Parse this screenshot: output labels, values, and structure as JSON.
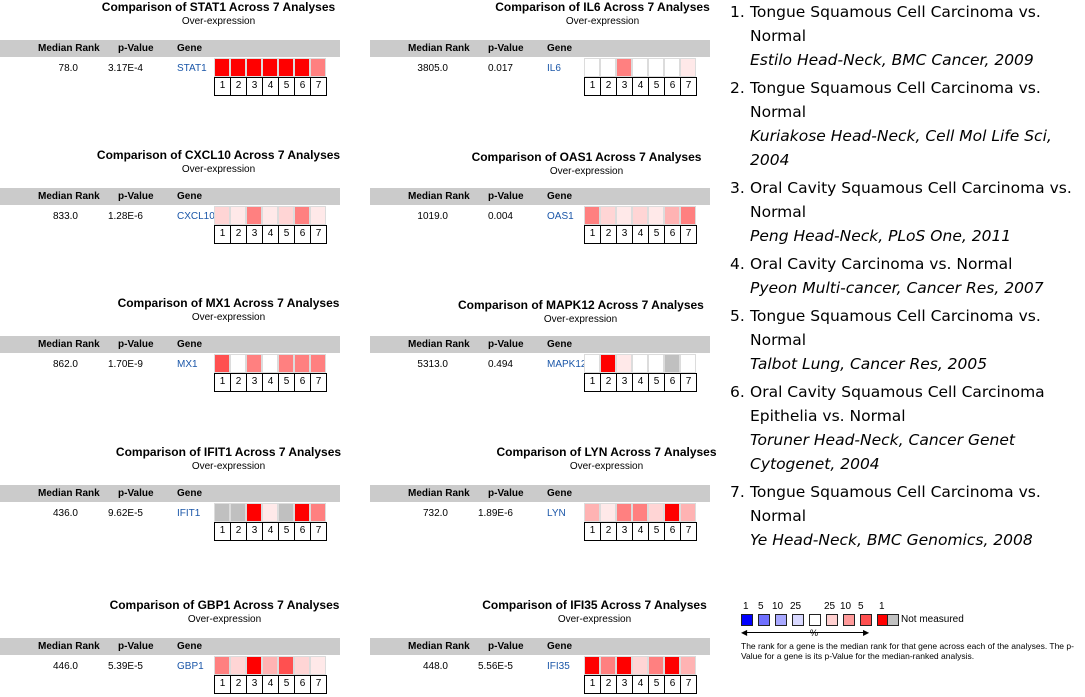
{
  "colors": {
    "0": "#ffffff",
    "1": "#ffe9e9",
    "2": "#ffd5d5",
    "3": "#ffb3b3",
    "4": "#ff8080",
    "5": "#ff5050",
    "6": "#ff0000",
    "g": "#c0c0c0"
  },
  "panels": [
    {
      "title": "Comparison of STAT1 Across 7 Analyses",
      "subtitle": "Over-expression",
      "header": {
        "rank": "Median Rank",
        "p": "p-Value",
        "gene": "Gene"
      },
      "rank": "78.0",
      "p": "3.17E-4",
      "gene": "STAT1",
      "levels": [
        "6",
        "6",
        "6",
        "6",
        "6",
        "6",
        "4"
      ]
    },
    {
      "title": "Comparison of IL6 Across 7 Analyses",
      "subtitle": "Over-expression",
      "header": {
        "rank": "Median Rank",
        "p": "p-Value",
        "gene": "Gene"
      },
      "rank": "3805.0",
      "p": "0.017",
      "gene": "IL6",
      "levels": [
        "0",
        "0",
        "4",
        "0",
        "0",
        "0",
        "1"
      ]
    },
    {
      "title": "Comparison of CXCL10 Across 7 Analyses",
      "subtitle": "Over-expression",
      "header": {
        "rank": "Median Rank",
        "p": "p-Value",
        "gene": "Gene"
      },
      "rank": "833.0",
      "p": "1.28E-6",
      "gene": "CXCL10",
      "levels": [
        "2",
        "1",
        "4",
        "1",
        "2",
        "4",
        "1"
      ]
    },
    {
      "title": "Comparison of OAS1 Across 7 Analyses",
      "subtitle": "Over-expression",
      "header": {
        "rank": "Median Rank",
        "p": "p-Value",
        "gene": "Gene"
      },
      "rank": "1019.0",
      "p": "0.004",
      "gene": "OAS1",
      "levels": [
        "4",
        "2",
        "1",
        "2",
        "1",
        "3",
        "4"
      ]
    },
    {
      "title": "Comparison of MX1 Across 7 Analyses",
      "subtitle": "Over-expression",
      "header": {
        "rank": "Median Rank",
        "p": "p-Value",
        "gene": "Gene"
      },
      "rank": "862.0",
      "p": "1.70E-9",
      "gene": "MX1",
      "levels": [
        "5",
        "0",
        "4",
        "0",
        "4",
        "4",
        "4"
      ]
    },
    {
      "title": "Comparison of MAPK12 Across 7 Analyses",
      "subtitle": "Over-expression",
      "header": {
        "rank": "Median Rank",
        "p": "p-Value",
        "gene": "Gene"
      },
      "rank": "5313.0",
      "p": "0.494",
      "gene": "MAPK12",
      "levels": [
        "0",
        "6",
        "1",
        "0",
        "0",
        "g",
        "0"
      ]
    },
    {
      "title": "Comparison of IFIT1 Across 7 Analyses",
      "subtitle": "Over-expression",
      "header": {
        "rank": "Median Rank",
        "p": "p-Value",
        "gene": "Gene"
      },
      "rank": "436.0",
      "p": "9.62E-5",
      "gene": "IFIT1",
      "levels": [
        "g",
        "g",
        "6",
        "1",
        "g",
        "6",
        "4"
      ]
    },
    {
      "title": "Comparison of LYN Across 7 Analyses",
      "subtitle": "Over-expression",
      "header": {
        "rank": "Median Rank",
        "p": "p-Value",
        "gene": "Gene"
      },
      "rank": "732.0",
      "p": "1.89E-6",
      "gene": "LYN",
      "levels": [
        "3",
        "1",
        "4",
        "4",
        "2",
        "6",
        "3"
      ]
    },
    {
      "title": "Comparison of GBP1 Across 7 Analyses",
      "subtitle": "Over-expression",
      "header": {
        "rank": "Median Rank",
        "p": "p-Value",
        "gene": "Gene"
      },
      "rank": "446.0",
      "p": "5.39E-5",
      "gene": "GBP1",
      "levels": [
        "4",
        "2",
        "6",
        "3",
        "5",
        "2",
        "1"
      ]
    },
    {
      "title": "Comparison of IFI35 Across 7 Analyses",
      "subtitle": "Over-expression",
      "header": {
        "rank": "Median Rank",
        "p": "p-Value",
        "gene": "Gene"
      },
      "rank": "448.0",
      "p": "5.56E-5",
      "gene": "IFI35",
      "levels": [
        "6",
        "4",
        "6",
        "2",
        "4",
        "6",
        "3"
      ]
    }
  ],
  "cell_numbers": [
    "1",
    "2",
    "3",
    "4",
    "5",
    "6",
    "7"
  ],
  "analyses": [
    {
      "num": "1.",
      "text": "Tongue Squamous Cell Carcinoma vs. Normal",
      "ref": "Estilo Head-Neck, BMC Cancer, 2009"
    },
    {
      "num": "2.",
      "text": "Tongue Squamous Cell Carcinoma vs. Normal",
      "ref": "Kuriakose Head-Neck, Cell Mol Life Sci, 2004"
    },
    {
      "num": "3.",
      "text": "Oral Cavity Squamous Cell Carcinoma vs. Normal",
      "ref": "Peng Head-Neck, PLoS One, 2011"
    },
    {
      "num": "4.",
      "text": "Oral Cavity Carcinoma vs. Normal",
      "ref": "Pyeon Multi-cancer, Cancer Res, 2007"
    },
    {
      "num": "5.",
      "text": "Tongue Squamous Cell Carcinoma vs. Normal",
      "ref": "Talbot Lung, Cancer Res, 2005"
    },
    {
      "num": "6.",
      "text": "Oral Cavity Squamous Cell Carcinoma Epithelia vs. Normal",
      "ref": "Toruner Head-Neck, Cancer Genet Cytogenet, 2004"
    },
    {
      "num": "7.",
      "text": "Tongue Squamous Cell Carcinoma vs. Normal",
      "ref": "Ye Head-Neck, BMC Genomics, 2008"
    }
  ],
  "scale": {
    "labels": [
      "1",
      "5",
      "10",
      "25",
      "25",
      "10",
      "5",
      "1"
    ],
    "colors": [
      "#0000ff",
      "#7070ff",
      "#a8a8ff",
      "#d8d8ff",
      "#ffffff",
      "#ffd0d0",
      "#ff9a9a",
      "#ff5050",
      "#ff0000",
      "#c0c0c0"
    ],
    "not_measured": "Not measured",
    "percent": "%",
    "note": "The rank for a gene is the median rank for that gene across each of the analyses. The p-Value for a gene is its p-Value for the median-ranked analysis."
  }
}
